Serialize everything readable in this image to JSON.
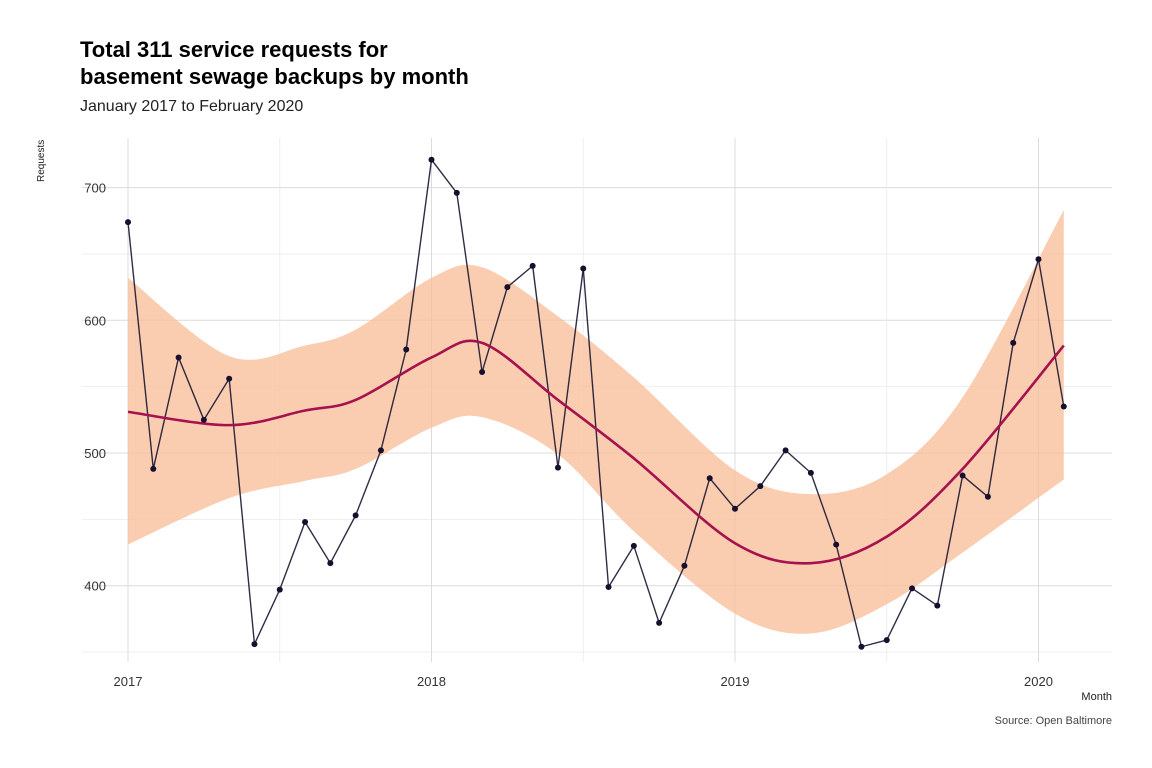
{
  "chart_data": {
    "type": "line",
    "title_lines": [
      "Total 311 service requests for",
      "basement sewage backups by month"
    ],
    "subtitle": "January 2017 to February 2020",
    "xlabel": "Month",
    "ylabel": "Requests",
    "caption": "Source: Open Baltimore",
    "x_ticks": [
      "2017",
      "2018",
      "2019",
      "2020"
    ],
    "y_ticks": [
      400,
      500,
      600,
      700
    ],
    "ylim": [
      345,
      740
    ],
    "grid": true,
    "colors": {
      "line": "#1a1530",
      "line_mid": "#7a3b33",
      "points": "#160f2e",
      "trend": "#a5124e",
      "band": "#f8bf9b"
    },
    "series": [
      {
        "x": [
          "2017-01",
          "2017-02",
          "2017-03",
          "2017-04",
          "2017-05",
          "2017-06",
          "2017-07",
          "2017-08",
          "2017-09",
          "2017-10",
          "2017-11",
          "2017-12",
          "2018-01",
          "2018-02",
          "2018-03",
          "2018-04",
          "2018-05",
          "2018-06",
          "2018-07",
          "2018-08",
          "2018-09",
          "2018-10",
          "2018-11",
          "2018-12",
          "2019-01",
          "2019-02",
          "2019-03",
          "2019-04",
          "2019-05",
          "2019-06",
          "2019-07",
          "2019-08",
          "2019-09",
          "2019-10",
          "2019-11",
          "2019-12",
          "2020-01",
          "2020-02"
        ],
        "values": [
          674,
          488,
          572,
          525,
          556,
          356,
          397,
          448,
          417,
          453,
          502,
          578,
          721,
          696,
          561,
          625,
          641,
          489,
          639,
          399,
          430,
          372,
          415,
          481,
          458,
          475,
          502,
          485,
          431,
          354,
          359,
          398,
          385,
          483,
          467,
          583,
          646,
          535
        ]
      }
    ],
    "smooth": {
      "x": [
        "2017-01",
        "2017-05",
        "2017-08",
        "2017-10",
        "2018-01",
        "2018-03",
        "2018-06",
        "2018-09",
        "2019-01",
        "2019-04",
        "2019-07",
        "2019-10",
        "2020-02"
      ],
      "fit": [
        531,
        521,
        532,
        540,
        572,
        583,
        540,
        496,
        432,
        417,
        437,
        488,
        581
      ],
      "lower": [
        431,
        466,
        479,
        488,
        519,
        527,
        499,
        441,
        379,
        364,
        386,
        425,
        480
      ],
      "upper": [
        632,
        573,
        581,
        593,
        632,
        640,
        603,
        557,
        487,
        469,
        484,
        542,
        683
      ]
    }
  }
}
